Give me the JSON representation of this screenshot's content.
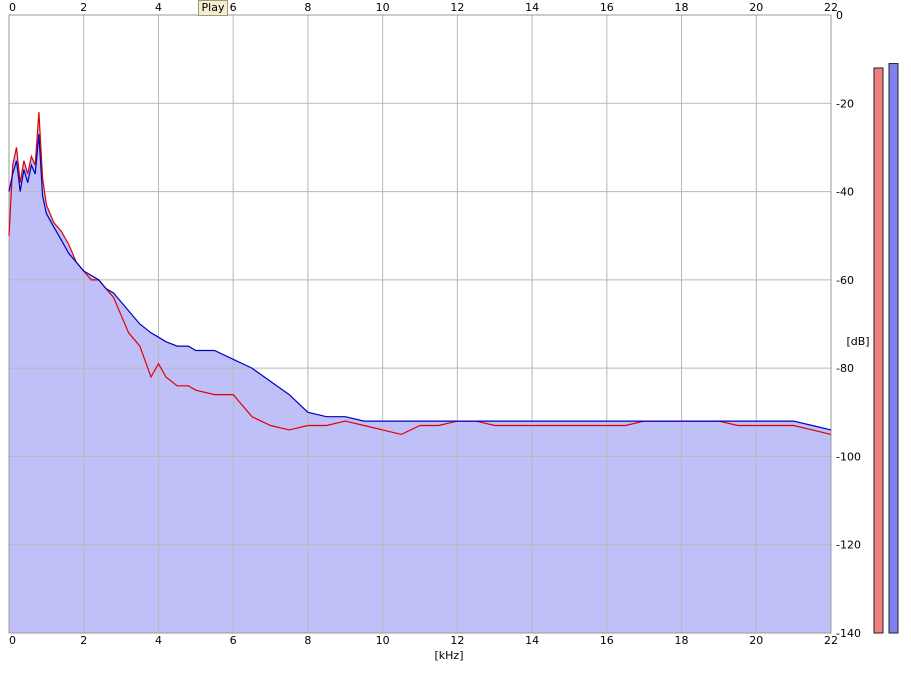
{
  "controls": {
    "play_label": "Play"
  },
  "chart_data": {
    "type": "line",
    "xlabel": "[kHz]",
    "ylabel": "[dB]",
    "xlim": [
      0,
      22
    ],
    "ylim": [
      -140,
      0
    ],
    "x_ticks": [
      "0",
      "2",
      "4",
      "6",
      "8",
      "10",
      "12",
      "14",
      "16",
      "18",
      "20",
      "22"
    ],
    "y_ticks": [
      "0",
      "-20",
      "-40",
      "-60",
      "-80",
      "-100",
      "-120",
      "-140"
    ],
    "grid": true,
    "fill_color": "#c0c0f8",
    "series": [
      {
        "color": "#e00000",
        "x": [
          0,
          0.1,
          0.2,
          0.3,
          0.4,
          0.5,
          0.6,
          0.7,
          0.8,
          0.9,
          1.0,
          1.2,
          1.4,
          1.6,
          1.8,
          2.0,
          2.2,
          2.4,
          2.6,
          2.8,
          3.0,
          3.2,
          3.5,
          3.8,
          4.0,
          4.2,
          4.5,
          4.8,
          5.0,
          5.5,
          6.0,
          6.5,
          7.0,
          7.5,
          8.0,
          8.5,
          9.0,
          9.5,
          10.0,
          10.5,
          11.0,
          11.5,
          12.0,
          12.5,
          13.0,
          13.5,
          14.0,
          14.5,
          15.0,
          15.5,
          16.0,
          16.5,
          17.0,
          17.5,
          18.0,
          18.5,
          19.0,
          19.5,
          20.0,
          20.5,
          21.0,
          21.5,
          22.0
        ],
        "y": [
          -50,
          -34,
          -30,
          -38,
          -33,
          -36,
          -32,
          -34,
          -22,
          -37,
          -43,
          -47,
          -49,
          -52,
          -56,
          -58,
          -60,
          -60,
          -62,
          -64,
          -68,
          -72,
          -75,
          -82,
          -79,
          -82,
          -84,
          -84,
          -85,
          -86,
          -86,
          -91,
          -93,
          -94,
          -93,
          -93,
          -92,
          -93,
          -94,
          -95,
          -93,
          -93,
          -92,
          -92,
          -93,
          -93,
          -93,
          -93,
          -93,
          -93,
          -93,
          -93,
          -92,
          -92,
          -92,
          -92,
          -92,
          -93,
          -93,
          -93,
          -93,
          -94,
          -95
        ]
      },
      {
        "color": "#0000c0",
        "x": [
          0,
          0.1,
          0.2,
          0.3,
          0.4,
          0.5,
          0.6,
          0.7,
          0.8,
          0.9,
          1.0,
          1.2,
          1.4,
          1.6,
          1.8,
          2.0,
          2.2,
          2.4,
          2.6,
          2.8,
          3.0,
          3.2,
          3.5,
          3.8,
          4.0,
          4.2,
          4.5,
          4.8,
          5.0,
          5.5,
          6.0,
          6.5,
          7.0,
          7.5,
          8.0,
          8.5,
          9.0,
          9.5,
          10.0,
          10.5,
          11.0,
          11.5,
          12.0,
          12.5,
          13.0,
          13.5,
          14.0,
          14.5,
          15.0,
          15.5,
          16.0,
          16.5,
          17.0,
          17.5,
          18.0,
          18.5,
          19.0,
          19.5,
          20.0,
          20.5,
          21.0,
          21.5,
          22.0
        ],
        "y": [
          -40,
          -36,
          -33,
          -40,
          -35,
          -38,
          -34,
          -36,
          -27,
          -41,
          -45,
          -48,
          -51,
          -54,
          -56,
          -58,
          -59,
          -60,
          -62,
          -63,
          -65,
          -67,
          -70,
          -72,
          -73,
          -74,
          -75,
          -75,
          -76,
          -76,
          -78,
          -80,
          -83,
          -86,
          -90,
          -91,
          -91,
          -92,
          -92,
          -92,
          -92,
          -92,
          -92,
          -92,
          -92,
          -92,
          -92,
          -92,
          -92,
          -92,
          -92,
          -92,
          -92,
          -92,
          -92,
          -92,
          -92,
          -92,
          -92,
          -92,
          -92,
          -93,
          -94
        ]
      }
    ],
    "level_meters": [
      {
        "color": "#f08080",
        "level_db": -12
      },
      {
        "color": "#8080f0",
        "level_db": -11
      }
    ]
  }
}
